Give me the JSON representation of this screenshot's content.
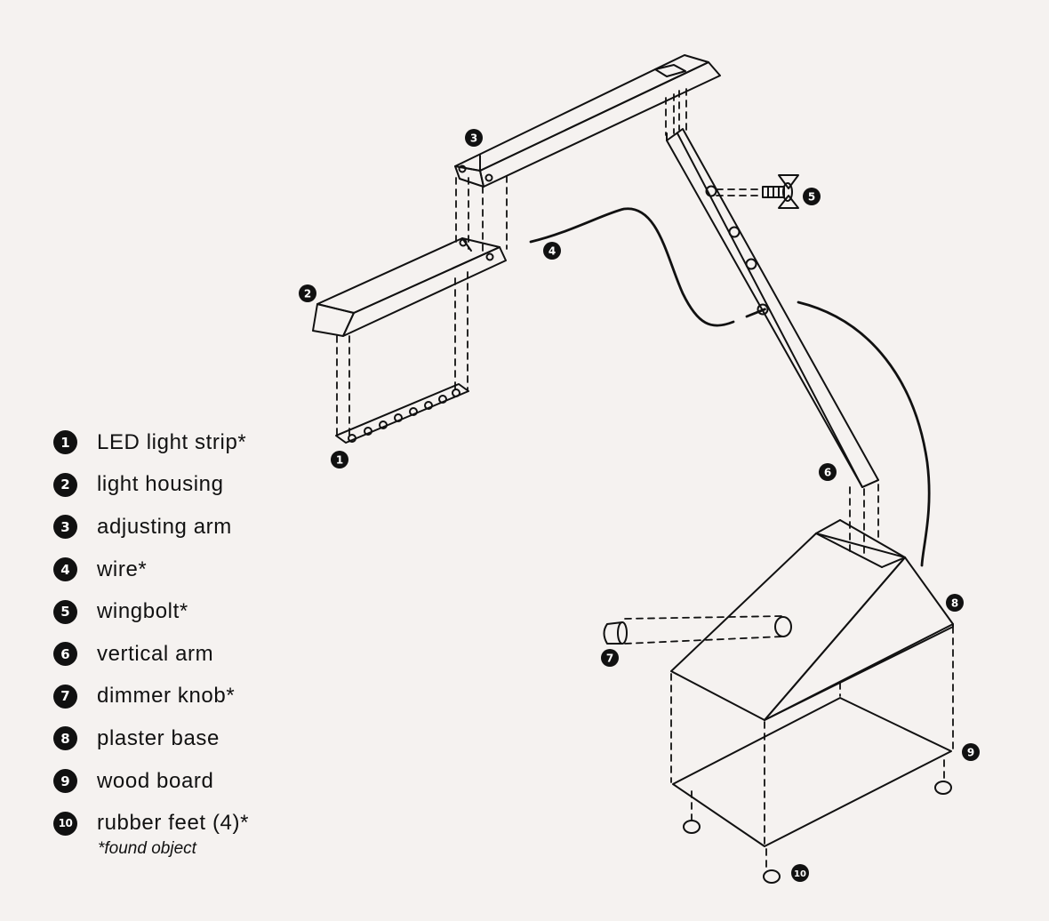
{
  "legend": [
    {
      "number": "1",
      "label": "LED light strip*"
    },
    {
      "number": "2",
      "label": "light housing"
    },
    {
      "number": "3",
      "label": "adjusting arm"
    },
    {
      "number": "4",
      "label": "wire*"
    },
    {
      "number": "5",
      "label": "wingbolt*"
    },
    {
      "number": "6",
      "label": "vertical arm"
    },
    {
      "number": "7",
      "label": "dimmer knob*"
    },
    {
      "number": "8",
      "label": "plaster base"
    },
    {
      "number": "9",
      "label": "wood board"
    },
    {
      "number": "10",
      "label": "rubber feet (4)*"
    }
  ],
  "footnote": "*found object",
  "colors": {
    "background": "#f5f2f0",
    "ink": "#111111"
  }
}
